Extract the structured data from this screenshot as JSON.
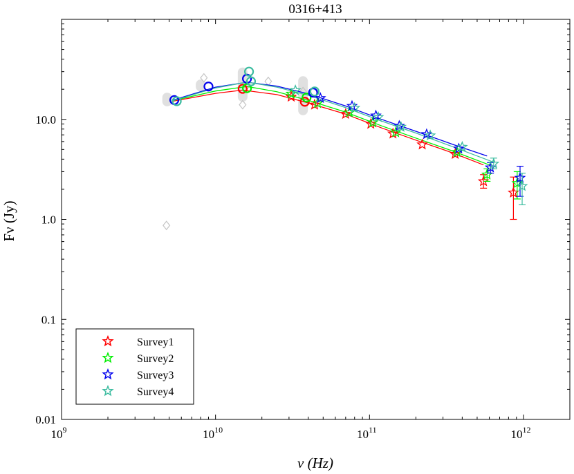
{
  "chart_data": {
    "type": "scatter",
    "title": "0316+413",
    "xlabel": "ν (Hz)",
    "ylabel": "Fν (Jy)",
    "xscale": "log",
    "yscale": "log",
    "xlim": [
      1000000000.0,
      2000000000000.0
    ],
    "ylim": [
      0.01,
      100
    ],
    "xticks": [
      {
        "value": 1000000000.0,
        "base": "10",
        "exp": "9"
      },
      {
        "value": 10000000000.0,
        "base": "10",
        "exp": "10"
      },
      {
        "value": 100000000000.0,
        "base": "10",
        "exp": "11"
      },
      {
        "value": 1000000000000.0,
        "base": "10",
        "exp": "12"
      }
    ],
    "yticks": [
      {
        "value": 0.01,
        "label": "0.01"
      },
      {
        "value": 0.1,
        "label": "0.1"
      },
      {
        "value": 1,
        "label": "1.0"
      },
      {
        "value": 10,
        "label": "10.0"
      }
    ],
    "legend_position": "bottom-left",
    "archival": {
      "points": [
        [
          4800000000.0,
          0.87
        ],
        [
          8400000000.0,
          26
        ],
        [
          15000000000.0,
          14
        ],
        [
          22000000000.0,
          24
        ],
        [
          37000000000.0,
          19
        ],
        [
          16000000000.0,
          22
        ]
      ],
      "bands": [
        [
          4850000000.0,
          13.5,
          18.5
        ],
        [
          8000000000.0,
          19,
          25
        ],
        [
          15000000000.0,
          15,
          33
        ],
        [
          37000000000.0,
          11,
          27
        ]
      ]
    },
    "series": [
      {
        "name": "Survey1",
        "color": "#ff0000",
        "fit": [
          [
            5300000000.0,
            15.2
          ],
          [
            10000000000.0,
            18.2
          ],
          [
            15000000000.0,
            19.6
          ],
          [
            25000000000.0,
            17.7
          ],
          [
            40000000000.0,
            14.6
          ],
          [
            70000000000.0,
            11.3
          ],
          [
            120000000000.0,
            8.2
          ],
          [
            200000000000.0,
            6.2
          ],
          [
            350000000000.0,
            4.6
          ],
          [
            550000000000.0,
            3.5
          ]
        ],
        "circles": [
          [
            15000000000.0,
            20.2
          ],
          [
            38000000000.0,
            15
          ]
        ],
        "stars": [
          [
            31000000000.0,
            16.8
          ],
          [
            44000000000.0,
            14
          ],
          [
            70000000000.0,
            11.3
          ],
          [
            102000000000.0,
            9
          ],
          [
            142000000000.0,
            7.2
          ],
          [
            220000000000.0,
            5.6
          ],
          [
            360000000000.0,
            4.5
          ],
          [
            550000000000.0,
            2.4
          ],
          [
            860000000000.0,
            1.85
          ]
        ],
        "errors": [
          [
            550000000000.0,
            2.05,
            2.8
          ],
          [
            860000000000.0,
            1.0,
            2.65
          ]
        ]
      },
      {
        "name": "Survey2",
        "color": "#00ee00",
        "fit": [
          [
            5300000000.0,
            15.4
          ],
          [
            10000000000.0,
            19.2
          ],
          [
            16000000000.0,
            21.3
          ],
          [
            25000000000.0,
            18.9
          ],
          [
            40000000000.0,
            15.5
          ],
          [
            70000000000.0,
            11.8
          ],
          [
            120000000000.0,
            8.6
          ],
          [
            200000000000.0,
            6.5
          ],
          [
            350000000000.0,
            4.8
          ],
          [
            600000000000.0,
            3.5
          ]
        ],
        "circles": [
          [
            16000000000.0,
            20.5
          ],
          [
            39000000000.0,
            16.5
          ]
        ],
        "stars": [
          [
            31000000000.0,
            18
          ],
          [
            46000000000.0,
            14.5
          ],
          [
            74000000000.0,
            11.7
          ],
          [
            105000000000.0,
            9.3
          ],
          [
            148000000000.0,
            7.4
          ],
          [
            370000000000.0,
            4.7
          ],
          [
            580000000000.0,
            2.8
          ],
          [
            910000000000.0,
            2.3
          ]
        ],
        "errors": [
          [
            580000000000.0,
            2.4,
            3.2
          ],
          [
            910000000000.0,
            1.6,
            3.0
          ]
        ]
      },
      {
        "name": "Survey3",
        "color": "#0000ee",
        "fit": [
          [
            5300000000.0,
            15.6
          ],
          [
            10000000000.0,
            21.0
          ],
          [
            16000000000.0,
            23.5
          ],
          [
            25000000000.0,
            21.5
          ],
          [
            40000000000.0,
            18.0
          ],
          [
            70000000000.0,
            13.6
          ],
          [
            120000000000.0,
            10.0
          ],
          [
            200000000000.0,
            7.6
          ],
          [
            350000000000.0,
            5.6
          ],
          [
            580000000000.0,
            4.3
          ]
        ],
        "circles": [
          [
            5400000000.0,
            15.6
          ],
          [
            9000000000.0,
            21.3
          ],
          [
            16000000000.0,
            25.5
          ],
          [
            43000000000.0,
            18.5
          ]
        ],
        "stars": [
          [
            48000000000.0,
            16.3
          ],
          [
            77000000000.0,
            13.6
          ],
          [
            110000000000.0,
            10.9
          ],
          [
            156000000000.0,
            8.6
          ],
          [
            235000000000.0,
            7.1
          ],
          [
            380000000000.0,
            5.1
          ],
          [
            610000000000.0,
            3.3
          ],
          [
            950000000000.0,
            2.6
          ]
        ],
        "errors": [
          [
            610000000000.0,
            2.9,
            3.7
          ],
          [
            950000000000.0,
            1.7,
            3.4
          ]
        ]
      },
      {
        "name": "Survey4",
        "color": "#3cbca0",
        "fit": [
          [
            5300000000.0,
            15.4
          ],
          [
            10000000000.0,
            20.6
          ],
          [
            16000000000.0,
            23.6
          ],
          [
            25000000000.0,
            21.0
          ],
          [
            40000000000.0,
            17.4
          ],
          [
            70000000000.0,
            13.1
          ],
          [
            120000000000.0,
            9.6
          ],
          [
            200000000000.0,
            7.3
          ],
          [
            350000000000.0,
            5.3
          ],
          [
            650000000000.0,
            3.7
          ]
        ],
        "circles": [
          [
            5600000000.0,
            15.2
          ],
          [
            16500000000.0,
            30
          ],
          [
            17000000000.0,
            24
          ],
          [
            44000000000.0,
            19
          ]
        ],
        "stars": [
          [
            33000000000.0,
            19.5
          ],
          [
            80000000000.0,
            13
          ],
          [
            114000000000.0,
            10.5
          ],
          [
            160000000000.0,
            8.4
          ],
          [
            248000000000.0,
            6.9
          ],
          [
            400000000000.0,
            5.3
          ],
          [
            640000000000.0,
            3.6
          ],
          [
            980000000000.0,
            2.15
          ]
        ],
        "errors": [
          [
            640000000000.0,
            3.2,
            4.1
          ],
          [
            980000000000.0,
            1.4,
            2.9
          ]
        ]
      }
    ]
  }
}
